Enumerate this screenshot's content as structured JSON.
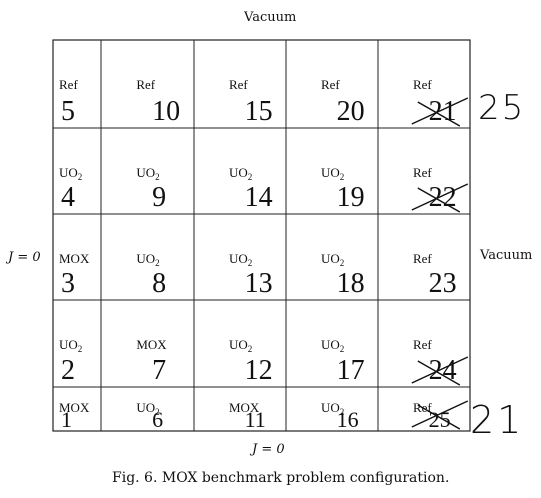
{
  "boundaries": {
    "top": "Vacuum",
    "right": "Vacuum",
    "left": "J = 0",
    "bottom": "J = 0"
  },
  "caption": "Fig. 6.  MOX benchmark problem configuration.",
  "rows": [
    [
      {
        "material": "Ref",
        "number": "5"
      },
      {
        "material": "Ref",
        "number": "10"
      },
      {
        "material": "Ref",
        "number": "15"
      },
      {
        "material": "Ref",
        "number": "20"
      },
      {
        "material": "Ref",
        "number": "21"
      }
    ],
    [
      {
        "material": "UO2",
        "number": "4"
      },
      {
        "material": "UO2",
        "number": "9"
      },
      {
        "material": "UO2",
        "number": "14"
      },
      {
        "material": "UO2",
        "number": "19"
      },
      {
        "material": "Ref",
        "number": "22"
      }
    ],
    [
      {
        "material": "MOX",
        "number": "3"
      },
      {
        "material": "UO2",
        "number": "8"
      },
      {
        "material": "UO2",
        "number": "13"
      },
      {
        "material": "UO2",
        "number": "18"
      },
      {
        "material": "Ref",
        "number": "23"
      }
    ],
    [
      {
        "material": "UO2",
        "number": "2"
      },
      {
        "material": "MOX",
        "number": "7"
      },
      {
        "material": "UO2",
        "number": "12"
      },
      {
        "material": "UO2",
        "number": "17"
      },
      {
        "material": "Ref",
        "number": "24"
      }
    ],
    [
      {
        "material": "MOX",
        "number": "1"
      },
      {
        "material": "UO2",
        "number": "6"
      },
      {
        "material": "MOX",
        "number": "11"
      },
      {
        "material": "UO2",
        "number": "16"
      },
      {
        "material": "Ref",
        "number": "25"
      }
    ]
  ],
  "corrections": {
    "right_of_row1": "25",
    "right_of_row5": "21"
  }
}
